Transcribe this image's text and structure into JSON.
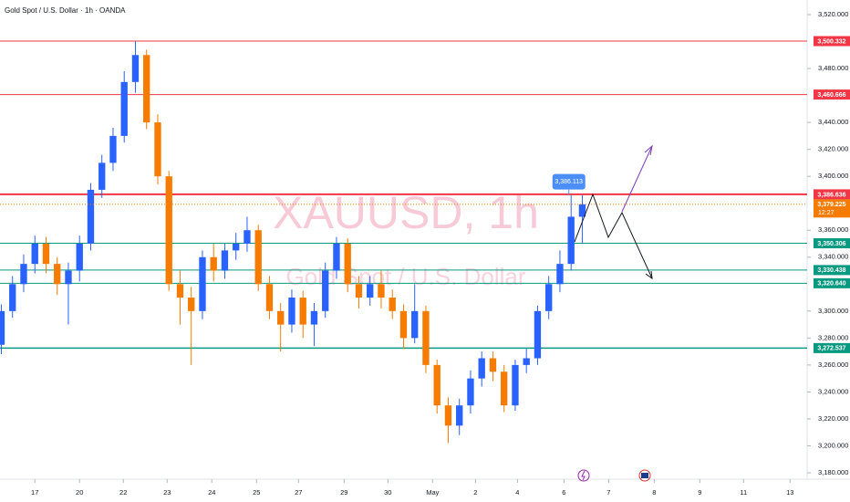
{
  "chart_data": {
    "type": "candlestick",
    "title": "Gold Spot / U.S. Dollar · 1h · OANDA",
    "watermark": "XAUUSD, 1h",
    "watermark_subtitle": "Gold Spot / U.S. Dollar",
    "up_color": "#2962ff",
    "down_color": "#f57c00",
    "x": [
      -0.75,
      -0.5,
      -0.25,
      0,
      0.25,
      0.5,
      0.75,
      1,
      1.25,
      1.5,
      1.75,
      2,
      2.25,
      2.5,
      2.75,
      3,
      3.25,
      3.5,
      3.75,
      4,
      4.25,
      4.5,
      4.75,
      5,
      5.25,
      5.5,
      5.75,
      6,
      6.25,
      6.5,
      6.75,
      7,
      7.25,
      7.5,
      7.75,
      8,
      8.25,
      8.5,
      8.75,
      9,
      9.25,
      9.5,
      9.75,
      10,
      10.25,
      10.5,
      10.75,
      11,
      11.25,
      11.5,
      11.75,
      12,
      12.25
    ],
    "open": [
      3275,
      3300,
      3320,
      3335,
      3350,
      3335,
      3320,
      3330,
      3350,
      3390,
      3410,
      3430,
      3470,
      3490,
      3440,
      3400,
      3320,
      3310,
      3300,
      3340,
      3330,
      3345,
      3350,
      3360,
      3320,
      3300,
      3290,
      3310,
      3290,
      3300,
      3330,
      3350,
      3320,
      3310,
      3320,
      3310,
      3300,
      3280,
      3300,
      3260,
      3230,
      3215,
      3230,
      3250,
      3265,
      3255,
      3230,
      3260,
      3265,
      3300,
      3320,
      3335,
      3370
    ],
    "high": [
      3305,
      3326,
      3342,
      3356,
      3355,
      3340,
      3336,
      3356,
      3395,
      3416,
      3436,
      3478,
      3500,
      3494,
      3446,
      3404,
      3330,
      3318,
      3345,
      3350,
      3350,
      3358,
      3370,
      3364,
      3326,
      3306,
      3316,
      3315,
      3306,
      3336,
      3355,
      3354,
      3326,
      3326,
      3330,
      3316,
      3305,
      3320,
      3304,
      3264,
      3236,
      3235,
      3256,
      3270,
      3270,
      3260,
      3264,
      3272,
      3304,
      3326,
      3345,
      3386,
      3386
    ],
    "low": [
      3268,
      3295,
      3314,
      3328,
      3328,
      3312,
      3290,
      3322,
      3345,
      3384,
      3404,
      3425,
      3462,
      3435,
      3394,
      3315,
      3290,
      3260,
      3294,
      3322,
      3324,
      3338,
      3344,
      3315,
      3294,
      3270,
      3284,
      3280,
      3274,
      3295,
      3324,
      3314,
      3302,
      3304,
      3302,
      3294,
      3272,
      3276,
      3254,
      3224,
      3202,
      3208,
      3224,
      3244,
      3248,
      3225,
      3226,
      3254,
      3260,
      3294,
      3314,
      3330,
      3350
    ],
    "close": [
      3300,
      3320,
      3335,
      3350,
      3335,
      3320,
      3330,
      3350,
      3390,
      3410,
      3430,
      3470,
      3490,
      3440,
      3400,
      3320,
      3310,
      3300,
      3340,
      3330,
      3345,
      3350,
      3360,
      3320,
      3300,
      3290,
      3310,
      3290,
      3300,
      3330,
      3350,
      3320,
      3310,
      3320,
      3310,
      3300,
      3280,
      3300,
      3260,
      3230,
      3215,
      3230,
      3250,
      3265,
      3255,
      3230,
      3260,
      3265,
      3300,
      3320,
      3335,
      3370,
      3379.225
    ],
    "xlim": [
      -0.78,
      17.18
    ],
    "ylim": [
      3180,
      3520
    ],
    "xticks": [
      {
        "value": 0,
        "label": "17"
      },
      {
        "value": 1,
        "label": "20"
      },
      {
        "value": 1.98,
        "label": "22"
      },
      {
        "value": 2.96,
        "label": "23"
      },
      {
        "value": 3.96,
        "label": "24"
      },
      {
        "value": 4.96,
        "label": "25"
      },
      {
        "value": 5.9,
        "label": "27"
      },
      {
        "value": 6.92,
        "label": "29"
      },
      {
        "value": 7.9,
        "label": "30"
      },
      {
        "value": 8.9,
        "label": "May"
      },
      {
        "value": 9.86,
        "label": "2"
      },
      {
        "value": 10.8,
        "label": "4"
      },
      {
        "value": 11.84,
        "label": "6"
      },
      {
        "value": 12.84,
        "label": "7"
      },
      {
        "value": 13.86,
        "label": "8"
      },
      {
        "value": 14.88,
        "label": "9"
      },
      {
        "value": 15.86,
        "label": "11"
      },
      {
        "value": 16.9,
        "label": "13"
      }
    ],
    "yticks": [
      {
        "value": 3520,
        "label": "3,520.000"
      },
      {
        "value": 3480,
        "label": "3,480.000"
      },
      {
        "value": 3440,
        "label": "3,440.000"
      },
      {
        "value": 3420,
        "label": "3,420.000"
      },
      {
        "value": 3400,
        "label": "3,400.000"
      },
      {
        "value": 3360,
        "label": "3,360.000"
      },
      {
        "value": 3340,
        "label": "3,340.000"
      },
      {
        "value": 3300,
        "label": "3,300.000"
      },
      {
        "value": 3280,
        "label": "3,280.000"
      },
      {
        "value": 3260,
        "label": "3,260.000"
      },
      {
        "value": 3240,
        "label": "3,240.000"
      },
      {
        "value": 3220,
        "label": "3,220.000"
      },
      {
        "value": 3200,
        "label": "3,200.000"
      },
      {
        "value": 3180,
        "label": "3,180.000"
      }
    ],
    "levels": [
      {
        "value": 3500.332,
        "label": "3,500.332",
        "color": "#f23645",
        "width": 1
      },
      {
        "value": 3460.666,
        "label": "3,460.666",
        "color": "#f23645",
        "width": 1
      },
      {
        "value": 3386.636,
        "label": "3,386.636",
        "color": "#f23645",
        "width": 2
      },
      {
        "value": 3350.306,
        "label": "3,350.306",
        "color": "#089981",
        "width": 1
      },
      {
        "value": 3330.438,
        "label": "3,330.438",
        "color": "#089981",
        "width": 1
      },
      {
        "value": 3320.64,
        "label": "3,320.640",
        "color": "#089981",
        "width": 1
      },
      {
        "value": 3272.537,
        "label": "3,272.537",
        "color": "#089981",
        "width": 1.5
      }
    ],
    "last_price": {
      "value": 3379.225,
      "label": "3,379.225",
      "countdown": "12:27",
      "color": "#f57c00"
    },
    "callout": {
      "x": 11.95,
      "value": 3386.113,
      "label": "3,386.113",
      "color": "#4c8ef7"
    }
  }
}
